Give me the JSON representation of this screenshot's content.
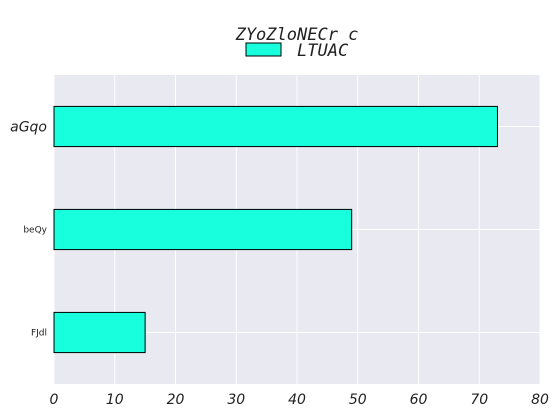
{
  "chart_data": {
    "type": "bar",
    "orientation": "horizontal",
    "title": "ZYoZloNECr c",
    "categories": [
      "aGqo",
      "beQy",
      "FJdl"
    ],
    "series": [
      {
        "name": "LTUAC",
        "values": [
          73,
          49,
          15
        ]
      }
    ],
    "xlim": [
      0,
      80
    ],
    "xticks": [
      0,
      10,
      20,
      30,
      40,
      50,
      60,
      70,
      80
    ],
    "xlabel": "",
    "ylabel": "",
    "grid": true,
    "legend_position": "top-center",
    "colors": {
      "bar_fill": "#18FFDE",
      "bar_edge": "#000000",
      "plot_background": "#E9E9F1",
      "grid": "#FFFFFF"
    }
  }
}
